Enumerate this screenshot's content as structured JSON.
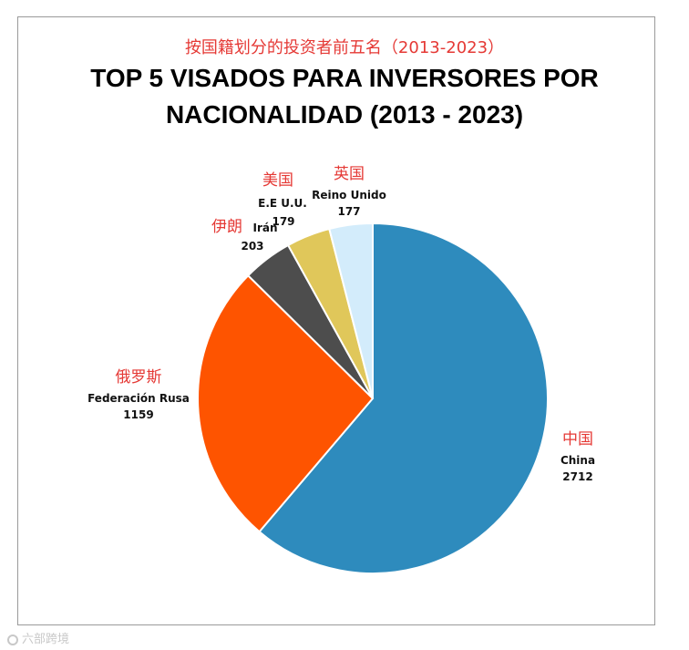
{
  "chart_data": {
    "type": "pie",
    "title": "TOP 5 VISADOS PARA INVERSORES POR NACIONALIDAD (2013 - 2023)",
    "subtitle": "按国籍划分的投资者前五名（2013-2023）",
    "categories": [
      "China",
      "Federación Rusa",
      "Irán",
      "E.E U.U.",
      "Reino Unido"
    ],
    "categories_cn": [
      "中国",
      "俄罗斯",
      "伊朗",
      "美国",
      "英国"
    ],
    "values": [
      2712,
      1159,
      203,
      179,
      177
    ],
    "colors": [
      "#2e8bbd",
      "#fe5400",
      "#4d4d4d",
      "#e0c75a",
      "#d3ecfb"
    ]
  },
  "watermark": "六部跨境"
}
